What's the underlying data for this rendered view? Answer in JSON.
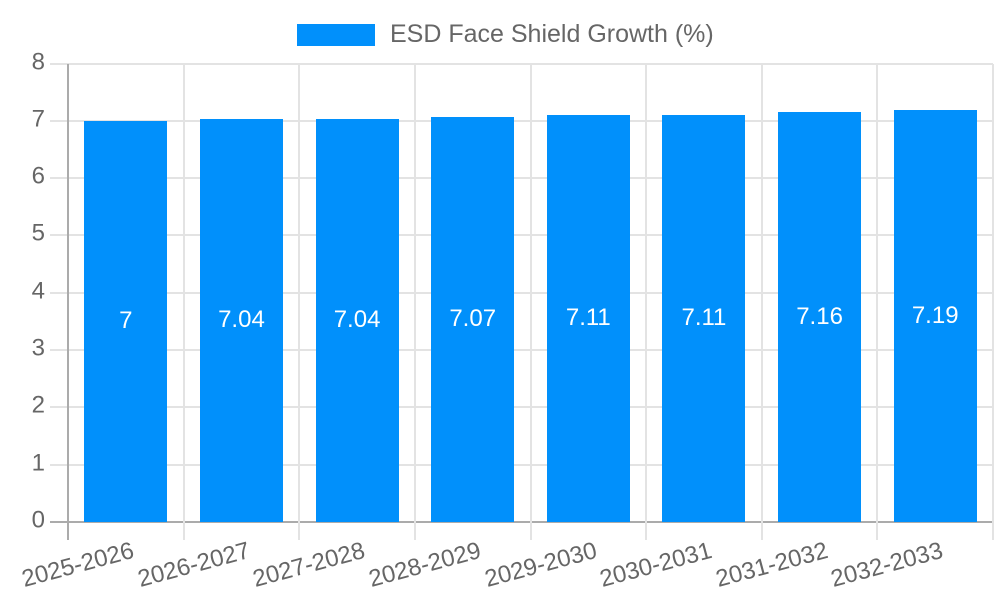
{
  "chart_data": {
    "type": "bar",
    "title": "",
    "xlabel": "",
    "ylabel": "",
    "categories": [
      "2025-2026",
      "2026-2027",
      "2027-2028",
      "2028-2029",
      "2029-2030",
      "2030-2031",
      "2031-2032",
      "2032-2033"
    ],
    "series": [
      {
        "name": "ESD Face Shield Growth (%)",
        "values": [
          7,
          7.04,
          7.04,
          7.07,
          7.11,
          7.11,
          7.16,
          7.19
        ],
        "value_labels": [
          "7",
          "7.04",
          "7.04",
          "7.07",
          "7.11",
          "7.11",
          "7.16",
          "7.19"
        ],
        "color": "#0190fb"
      }
    ],
    "legend": {
      "position": "top",
      "entries": [
        {
          "label": "ESD Face Shield Growth (%)",
          "color": "#0190fb"
        }
      ]
    },
    "ylim": [
      0,
      8
    ],
    "yticks": [
      0,
      1,
      2,
      3,
      4,
      5,
      6,
      7,
      8
    ],
    "grid": true,
    "x_label_rotation_deg": -15
  },
  "colors": {
    "bar": "#0190fb",
    "grid": "#e3e3e3",
    "axis": "#ababab",
    "tick_text": "#666666",
    "value_label": "#ffffff",
    "background": "#ffffff"
  }
}
